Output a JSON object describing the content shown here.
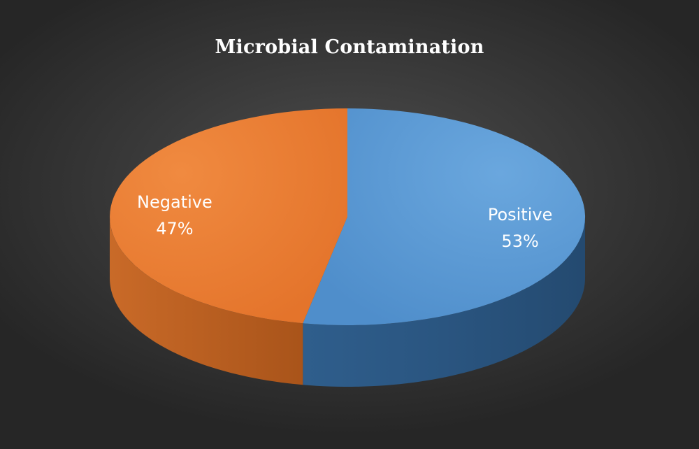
{
  "chart_data": {
    "type": "pie",
    "title": "Microbial Contamination",
    "style": "3d",
    "slices": [
      {
        "label": "Positive",
        "value": 53,
        "value_label": "53%",
        "color": "#5b9bd5"
      },
      {
        "label": "Negative",
        "value": 47,
        "value_label": "47%",
        "color": "#ed7d31"
      }
    ]
  },
  "colors": {
    "background": "#3a3a3a",
    "positive_side": "#2f5f8c",
    "negative_side": "#b75a1c"
  }
}
